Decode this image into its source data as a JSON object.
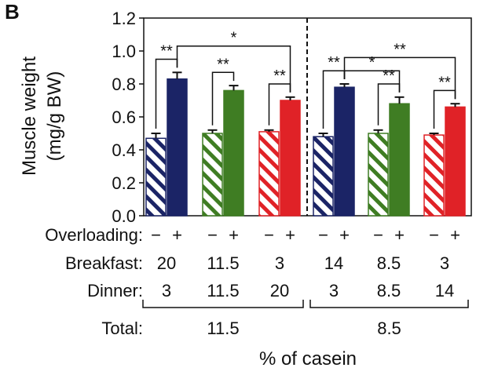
{
  "panel_label": "B",
  "chart_data": {
    "type": "bar",
    "ylabel": [
      "Muscle weight",
      "(mg/g BW)"
    ],
    "ylim": [
      0,
      1.2
    ],
    "yticks": [
      0.0,
      0.2,
      0.4,
      0.6,
      0.8,
      1.0,
      1.2
    ],
    "ytick_labels": [
      "0.0",
      "0.2",
      "0.4",
      "0.6",
      "0.8",
      "1.0",
      "1.2"
    ],
    "overloading_label": "Overloading:",
    "breakfast_label": "Breakfast:",
    "dinner_label": "Dinner:",
    "total_label": "Total:",
    "xlabel": "% of casein",
    "minus": "−",
    "plus": "+",
    "groups": [
      {
        "breakfast": "20",
        "dinner": "3",
        "color": "#1b2466",
        "values": [
          0.47,
          0.83
        ],
        "errors": [
          0.03,
          0.04
        ]
      },
      {
        "breakfast": "11.5",
        "dinner": "11.5",
        "color": "#3f7d23",
        "values": [
          0.5,
          0.76
        ],
        "errors": [
          0.02,
          0.03
        ]
      },
      {
        "breakfast": "3",
        "dinner": "20",
        "color": "#e02227",
        "values": [
          0.51,
          0.7
        ],
        "errors": [
          0.01,
          0.02
        ]
      },
      {
        "breakfast": "14",
        "dinner": "3",
        "color": "#1b2466",
        "values": [
          0.48,
          0.78
        ],
        "errors": [
          0.02,
          0.02
        ]
      },
      {
        "breakfast": "8.5",
        "dinner": "8.5",
        "color": "#3f7d23",
        "values": [
          0.5,
          0.68
        ],
        "errors": [
          0.02,
          0.04
        ]
      },
      {
        "breakfast": "3",
        "dinner": "14",
        "color": "#e02227",
        "values": [
          0.49,
          0.66
        ],
        "errors": [
          0.01,
          0.02
        ]
      }
    ],
    "totals": [
      {
        "label": "11.5",
        "groups": [
          0,
          1,
          2
        ]
      },
      {
        "label": "8.5",
        "groups": [
          3,
          4,
          5
        ]
      }
    ],
    "significance": [
      {
        "label": "**",
        "from": [
          0,
          0
        ],
        "to": [
          0,
          1
        ]
      },
      {
        "label": "*",
        "from": [
          0,
          1
        ],
        "to": [
          2,
          1
        ]
      },
      {
        "label": "**",
        "from": [
          1,
          0
        ],
        "to": [
          1,
          1
        ]
      },
      {
        "label": "**",
        "from": [
          2,
          0
        ],
        "to": [
          2,
          1
        ]
      },
      {
        "label": "**",
        "from": [
          3,
          0
        ],
        "to": [
          3,
          1
        ]
      },
      {
        "label": "**",
        "from": [
          3,
          1
        ],
        "to": [
          5,
          1
        ]
      },
      {
        "label": "*",
        "from": [
          3,
          1
        ],
        "to": [
          4,
          1
        ]
      },
      {
        "label": "**",
        "from": [
          4,
          0
        ],
        "to": [
          4,
          1
        ]
      },
      {
        "label": "**",
        "from": [
          5,
          0
        ],
        "to": [
          5,
          1
        ]
      }
    ]
  }
}
